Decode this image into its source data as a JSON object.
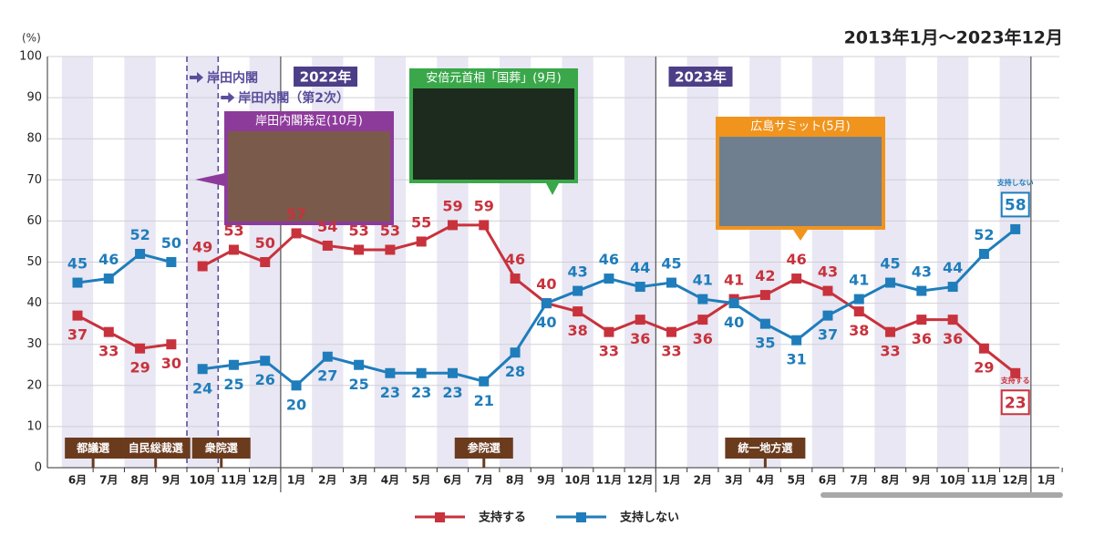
{
  "chart_data": {
    "type": "line",
    "title": "2013年1月～2023年12月",
    "y_unit": "(%)",
    "categories": [
      "6月",
      "7月",
      "8月",
      "9月",
      "10月",
      "11月",
      "12月",
      "1月",
      "2月",
      "3月",
      "4月",
      "5月",
      "6月",
      "7月",
      "8月",
      "9月",
      "10月",
      "11月",
      "12月",
      "1月",
      "2月",
      "3月",
      "4月",
      "5月",
      "6月",
      "7月",
      "8月",
      "9月",
      "10月",
      "11月",
      "12月",
      "1月"
    ],
    "series": [
      {
        "name": "支持する",
        "color": "#c8323c",
        "values": [
          37,
          33,
          29,
          30,
          49,
          53,
          50,
          57,
          54,
          53,
          53,
          55,
          59,
          59,
          46,
          40,
          38,
          33,
          36,
          33,
          36,
          41,
          42,
          46,
          43,
          38,
          33,
          36,
          36,
          29,
          23,
          null
        ]
      },
      {
        "name": "支持しない",
        "color": "#1f7dbb",
        "values": [
          45,
          46,
          52,
          50,
          24,
          25,
          26,
          20,
          27,
          25,
          23,
          23,
          23,
          21,
          28,
          40,
          43,
          46,
          44,
          45,
          41,
          40,
          35,
          31,
          37,
          41,
          45,
          43,
          44,
          52,
          58,
          null
        ]
      }
    ],
    "line_break_before": 4,
    "ylim": [
      0,
      100
    ],
    "yticks": [
      0,
      10,
      20,
      30,
      40,
      50,
      60,
      70,
      80,
      90,
      100
    ],
    "grid": true,
    "year_labels": [
      "2022年",
      "2023年"
    ],
    "cabinet_labels": [
      "岸田内閣",
      "岸田内閣（第2次）"
    ],
    "photo_captions": [
      "岸田内閣発足(10月)",
      "安倍元首相「国葬」(9月)",
      "広島サミット(5月)"
    ],
    "events": [
      "都議選",
      "自民総裁選",
      "衆院選",
      "参院選",
      "統一地方選"
    ]
  }
}
